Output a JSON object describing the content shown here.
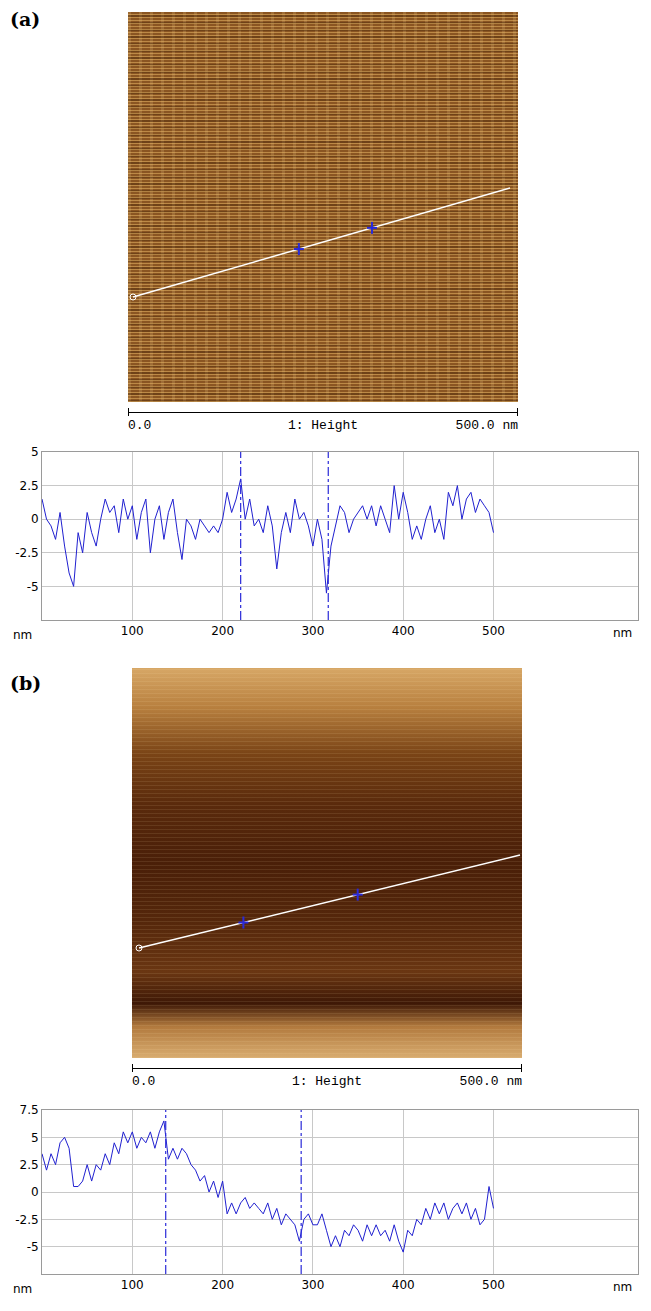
{
  "chart_data": [
    {
      "type": "line",
      "label": "(a)",
      "scale_start": "0.0",
      "scale_title": "1: Height",
      "scale_end": "500.0 nm",
      "x_label": "nm",
      "y_label": "nm",
      "xlim": [
        0,
        660
      ],
      "xticks": [
        100,
        200,
        300,
        400,
        500
      ],
      "ylim": [
        -7.5,
        5
      ],
      "yticks": [
        -5,
        -2.5,
        0,
        2.5,
        5
      ],
      "grid": true,
      "color": "#2020d0",
      "cursors": [
        220,
        317
      ],
      "x": [
        0,
        5,
        10,
        15,
        20,
        25,
        30,
        35,
        40,
        45,
        50,
        55,
        60,
        65,
        70,
        75,
        80,
        85,
        90,
        95,
        100,
        105,
        110,
        115,
        120,
        125,
        130,
        135,
        140,
        145,
        150,
        155,
        160,
        165,
        170,
        175,
        180,
        185,
        190,
        195,
        200,
        205,
        210,
        215,
        220,
        225,
        230,
        235,
        240,
        245,
        250,
        255,
        260,
        265,
        270,
        275,
        280,
        285,
        290,
        295,
        300,
        305,
        310,
        315,
        320,
        325,
        330,
        335,
        340,
        345,
        350,
        355,
        360,
        365,
        370,
        375,
        380,
        385,
        390,
        395,
        400,
        405,
        410,
        415,
        420,
        425,
        430,
        435,
        440,
        445,
        450,
        455,
        460,
        465,
        470,
        475,
        480,
        485,
        490,
        495,
        500
      ],
      "values": [
        1.5,
        0,
        -0.5,
        -1.5,
        0.5,
        -2,
        -4,
        -5,
        -1,
        -2.5,
        0.5,
        -1,
        -2,
        0,
        1.5,
        0.5,
        1,
        -1,
        1.5,
        0,
        1,
        -1.5,
        0.5,
        1.5,
        -2.5,
        0,
        1,
        -1.5,
        0.5,
        1.5,
        -1,
        -3,
        0,
        -0.5,
        -1.5,
        0,
        -0.5,
        -1,
        -0.5,
        -1,
        0,
        2,
        0.5,
        1.5,
        3,
        0,
        1.5,
        -0.5,
        0,
        -1,
        1,
        -0.5,
        -3.7,
        -1,
        0.5,
        -1,
        1.5,
        0,
        0.5,
        -0.5,
        -2,
        0,
        -1.5,
        -5.5,
        -2,
        -0.5,
        1,
        0.5,
        -1,
        0,
        0.5,
        1,
        0,
        1,
        -0.5,
        1,
        0,
        -1,
        2.5,
        0,
        2,
        0.5,
        -1.5,
        -0.5,
        -1.5,
        0,
        1,
        -1,
        0,
        -1.5,
        2,
        1,
        2.5,
        0,
        1.5,
        2,
        0.5,
        1.5,
        1,
        0.5,
        -1
      ]
    },
    {
      "type": "line",
      "label": "(b)",
      "scale_start": "0.0",
      "scale_title": "1: Height",
      "scale_end": "500.0 nm",
      "x_label": "nm",
      "y_label": "nm",
      "xlim": [
        0,
        660
      ],
      "xticks": [
        100,
        200,
        300,
        400,
        500
      ],
      "ylim": [
        -7.5,
        7.5
      ],
      "yticks": [
        -5,
        -2.5,
        0,
        2.5,
        5,
        7.5
      ],
      "grid": true,
      "color": "#2020d0",
      "cursors": [
        137,
        287
      ],
      "x": [
        0,
        5,
        10,
        15,
        20,
        25,
        30,
        35,
        40,
        45,
        50,
        55,
        60,
        65,
        70,
        75,
        80,
        85,
        90,
        95,
        100,
        105,
        110,
        115,
        120,
        125,
        130,
        135,
        140,
        145,
        150,
        155,
        160,
        165,
        170,
        175,
        180,
        185,
        190,
        195,
        200,
        205,
        210,
        215,
        220,
        225,
        230,
        235,
        240,
        245,
        250,
        255,
        260,
        265,
        270,
        275,
        280,
        285,
        290,
        295,
        300,
        305,
        310,
        315,
        320,
        325,
        330,
        335,
        340,
        345,
        350,
        355,
        360,
        365,
        370,
        375,
        380,
        385,
        390,
        395,
        400,
        405,
        410,
        415,
        420,
        425,
        430,
        435,
        440,
        445,
        450,
        455,
        460,
        465,
        470,
        475,
        480,
        485,
        490,
        495,
        500
      ],
      "values": [
        3.5,
        2,
        3.5,
        2.5,
        4.5,
        5,
        4,
        0.5,
        0.5,
        1,
        2.5,
        1,
        2.5,
        2,
        3.5,
        2.5,
        4.5,
        3.5,
        5.5,
        4.5,
        5.5,
        4,
        5,
        4.5,
        5.5,
        4,
        5.5,
        6.5,
        3,
        4,
        3,
        4,
        3.5,
        2.5,
        2,
        1,
        1.5,
        0,
        1,
        -0.5,
        1,
        -2,
        -1,
        -2,
        -1,
        -0.5,
        -1.5,
        -1,
        -1.5,
        -2,
        -1,
        -2.5,
        -1.5,
        -3,
        -2,
        -2.5,
        -3,
        -4.5,
        -2.5,
        -2,
        -3,
        -3,
        -2,
        -3.5,
        -5,
        -4,
        -5,
        -3.5,
        -4,
        -3,
        -3.5,
        -4.5,
        -3,
        -4,
        -3,
        -4,
        -3.5,
        -4.5,
        -3,
        -4.5,
        -5.5,
        -3.5,
        -4,
        -2.5,
        -3,
        -1.5,
        -2.5,
        -1,
        -2,
        -1,
        -2.5,
        -1.5,
        -1,
        -2,
        -1,
        -2.5,
        -1.5,
        -3,
        -2.5,
        0.5,
        -1.5
      ]
    }
  ]
}
